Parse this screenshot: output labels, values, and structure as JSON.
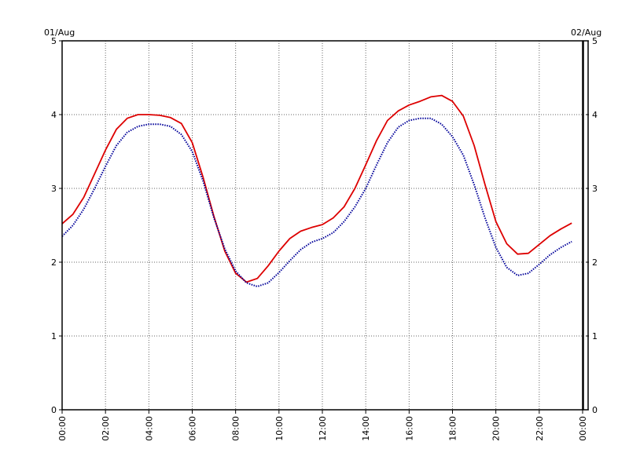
{
  "header": {
    "left_date": "01/Aug",
    "right_date": "02/Aug"
  },
  "chart_data": {
    "type": "line",
    "title": "",
    "xlabel": "",
    "ylabel": "",
    "xlim": [
      0,
      24
    ],
    "ylim": [
      0,
      5
    ],
    "y_ticks": [
      "0",
      "1",
      "2",
      "3",
      "4",
      "5"
    ],
    "x_ticks": [
      "00:00",
      "02:00",
      "04:00",
      "06:00",
      "08:00",
      "10:00",
      "12:00",
      "14:00",
      "16:00",
      "18:00",
      "20:00",
      "22:00",
      "00:00"
    ],
    "grid": true,
    "series": [
      {
        "color": "#dd0000",
        "style": "solid",
        "points": [
          [
            0.0,
            2.52
          ],
          [
            0.5,
            2.65
          ],
          [
            1.0,
            2.88
          ],
          [
            1.5,
            3.2
          ],
          [
            2.0,
            3.52
          ],
          [
            2.5,
            3.8
          ],
          [
            3.0,
            3.95
          ],
          [
            3.5,
            4.0
          ],
          [
            4.0,
            4.0
          ],
          [
            4.5,
            3.99
          ],
          [
            5.0,
            3.96
          ],
          [
            5.5,
            3.88
          ],
          [
            6.0,
            3.62
          ],
          [
            6.5,
            3.15
          ],
          [
            7.0,
            2.62
          ],
          [
            7.5,
            2.15
          ],
          [
            8.0,
            1.85
          ],
          [
            8.5,
            1.73
          ],
          [
            9.0,
            1.78
          ],
          [
            9.5,
            1.95
          ],
          [
            10.0,
            2.15
          ],
          [
            10.5,
            2.32
          ],
          [
            11.0,
            2.42
          ],
          [
            11.5,
            2.47
          ],
          [
            12.0,
            2.51
          ],
          [
            12.5,
            2.6
          ],
          [
            13.0,
            2.75
          ],
          [
            13.5,
            3.0
          ],
          [
            14.0,
            3.32
          ],
          [
            14.5,
            3.65
          ],
          [
            15.0,
            3.92
          ],
          [
            15.5,
            4.05
          ],
          [
            16.0,
            4.13
          ],
          [
            16.5,
            4.18
          ],
          [
            17.0,
            4.24
          ],
          [
            17.5,
            4.26
          ],
          [
            18.0,
            4.18
          ],
          [
            18.5,
            3.98
          ],
          [
            19.0,
            3.58
          ],
          [
            19.5,
            3.05
          ],
          [
            20.0,
            2.55
          ],
          [
            20.5,
            2.25
          ],
          [
            21.0,
            2.11
          ],
          [
            21.5,
            2.12
          ],
          [
            22.0,
            2.24
          ],
          [
            22.5,
            2.36
          ],
          [
            23.0,
            2.45
          ],
          [
            23.5,
            2.53
          ]
        ]
      },
      {
        "color": "#000099",
        "style": "dotted",
        "points": [
          [
            0.0,
            2.35
          ],
          [
            0.5,
            2.5
          ],
          [
            1.0,
            2.72
          ],
          [
            1.5,
            3.0
          ],
          [
            2.0,
            3.3
          ],
          [
            2.5,
            3.58
          ],
          [
            3.0,
            3.76
          ],
          [
            3.5,
            3.84
          ],
          [
            4.0,
            3.87
          ],
          [
            4.5,
            3.87
          ],
          [
            5.0,
            3.84
          ],
          [
            5.5,
            3.73
          ],
          [
            6.0,
            3.5
          ],
          [
            6.5,
            3.1
          ],
          [
            7.0,
            2.6
          ],
          [
            7.5,
            2.18
          ],
          [
            8.0,
            1.88
          ],
          [
            8.5,
            1.72
          ],
          [
            9.0,
            1.67
          ],
          [
            9.5,
            1.72
          ],
          [
            10.0,
            1.86
          ],
          [
            10.5,
            2.02
          ],
          [
            11.0,
            2.17
          ],
          [
            11.5,
            2.27
          ],
          [
            12.0,
            2.32
          ],
          [
            12.5,
            2.4
          ],
          [
            13.0,
            2.55
          ],
          [
            13.5,
            2.75
          ],
          [
            14.0,
            3.0
          ],
          [
            14.5,
            3.32
          ],
          [
            15.0,
            3.62
          ],
          [
            15.5,
            3.83
          ],
          [
            16.0,
            3.92
          ],
          [
            16.5,
            3.95
          ],
          [
            17.0,
            3.95
          ],
          [
            17.5,
            3.87
          ],
          [
            18.0,
            3.7
          ],
          [
            18.5,
            3.45
          ],
          [
            19.0,
            3.05
          ],
          [
            19.5,
            2.6
          ],
          [
            20.0,
            2.2
          ],
          [
            20.5,
            1.93
          ],
          [
            21.0,
            1.82
          ],
          [
            21.5,
            1.85
          ],
          [
            22.0,
            1.97
          ],
          [
            22.5,
            2.1
          ],
          [
            23.0,
            2.2
          ],
          [
            23.5,
            2.28
          ]
        ]
      }
    ]
  }
}
